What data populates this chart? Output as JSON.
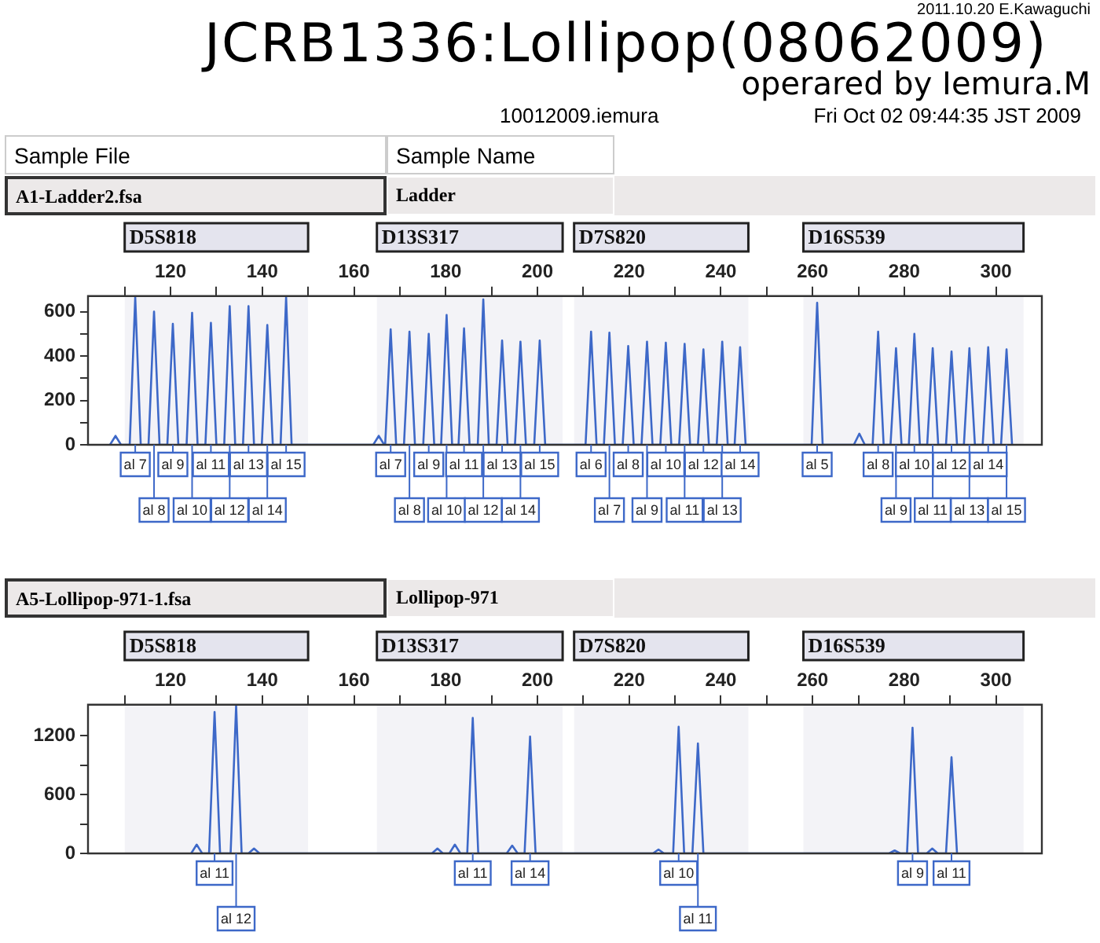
{
  "chart_data": [
    {
      "type": "line",
      "title": "JCRB1336:Lollipop(08062009)",
      "subtitle": "operared by Iemura.M",
      "annotations": [
        "2011.10.20 E.Kawaguchi",
        "10012009.iemura",
        "Fri Oct 02 09:44:35 JST 2009",
        "Sample File",
        "Sample Name",
        "A1-Ladder2.fsa",
        "Ladder",
        {
          "text": "al 7",
          "x": 112.3,
          "y": 0
        },
        {
          "text": "al 8",
          "x": 116.4,
          "y": 0
        },
        {
          "text": "al 9",
          "x": 120.5,
          "y": 0
        },
        {
          "text": "al 10",
          "x": 124.7,
          "y": 0
        },
        {
          "text": "al 11",
          "x": 128.8,
          "y": 0
        },
        {
          "text": "al 12",
          "x": 132.9,
          "y": 0
        },
        {
          "text": "al 13",
          "x": 137.0,
          "y": 0
        },
        {
          "text": "al 14",
          "x": 141.1,
          "y": 0
        },
        {
          "text": "al 15",
          "x": 145.2,
          "y": 0
        },
        {
          "text": "al 7",
          "x": 168.0,
          "y": 0
        },
        {
          "text": "al 8",
          "x": 172.1,
          "y": 0
        },
        {
          "text": "al 9",
          "x": 176.3,
          "y": 0
        },
        {
          "text": "al 10",
          "x": 180.2,
          "y": 0
        },
        {
          "text": "al 11",
          "x": 184.0,
          "y": 0
        },
        {
          "text": "al 12",
          "x": 188.2,
          "y": 0
        },
        {
          "text": "al 13",
          "x": 192.3,
          "y": 0
        },
        {
          "text": "al 14",
          "x": 196.3,
          "y": 0
        },
        {
          "text": "al 15",
          "x": 200.5,
          "y": 0
        },
        {
          "text": "al 6",
          "x": 211.7,
          "y": 0
        },
        {
          "text": "al 7",
          "x": 215.7,
          "y": 0
        },
        {
          "text": "al 8",
          "x": 219.8,
          "y": 0
        },
        {
          "text": "al 9",
          "x": 223.9,
          "y": 0
        },
        {
          "text": "al 10",
          "x": 228.0,
          "y": 0
        },
        {
          "text": "al 11",
          "x": 232.1,
          "y": 0
        },
        {
          "text": "al 12",
          "x": 236.2,
          "y": 0
        },
        {
          "text": "al 13",
          "x": 240.3,
          "y": 0
        },
        {
          "text": "al 14",
          "x": 244.2,
          "y": 0
        },
        {
          "text": "al 5",
          "x": 261.0,
          "y": 0
        },
        {
          "text": "al 8",
          "x": 274.3,
          "y": 0
        },
        {
          "text": "al 9",
          "x": 278.2,
          "y": 0
        },
        {
          "text": "al 10",
          "x": 282.2,
          "y": 0
        },
        {
          "text": "al 11",
          "x": 286.2,
          "y": 0
        },
        {
          "text": "al 12",
          "x": 290.3,
          "y": 0
        },
        {
          "text": "al 13",
          "x": 294.2,
          "y": 0
        },
        {
          "text": "al 14",
          "x": 298.3,
          "y": 0
        },
        {
          "text": "al 15",
          "x": 302.3,
          "y": 0
        }
      ],
      "bands": [
        {
          "axis": "x",
          "from": 110,
          "to": 150,
          "label": "D5S818",
          "color": "#e4e4ee"
        },
        {
          "axis": "x",
          "from": 165,
          "to": 205.5,
          "label": "D13S317",
          "color": "#e4e4ee"
        },
        {
          "axis": "x",
          "from": 208,
          "to": 246,
          "label": "D7S820",
          "color": "#e4e4ee"
        },
        {
          "axis": "x",
          "from": 258,
          "to": 306,
          "label": "D16S539",
          "color": "#e4e4ee"
        }
      ],
      "x": [
        106.8,
        108.0,
        109.2,
        111.1,
        112.3,
        113.5,
        115.2,
        116.4,
        117.6,
        119.3,
        120.5,
        121.7,
        123.5,
        124.7,
        125.9,
        127.6,
        128.8,
        130.0,
        131.7,
        132.9,
        134.1,
        135.8,
        137.0,
        138.2,
        139.9,
        141.1,
        142.3,
        144.0,
        145.2,
        146.4,
        164.2,
        165.4,
        166.6,
        166.8,
        168.0,
        169.2,
        170.9,
        172.1,
        173.3,
        175.1,
        176.3,
        177.5,
        179.0,
        180.2,
        181.4,
        182.8,
        184.0,
        185.2,
        187.0,
        188.2,
        189.4,
        191.1,
        192.3,
        193.5,
        195.1,
        196.3,
        197.5,
        199.3,
        200.5,
        201.7,
        210.5,
        211.7,
        212.9,
        214.5,
        215.7,
        216.9,
        218.6,
        219.8,
        221.0,
        222.7,
        223.9,
        225.1,
        226.8,
        228.0,
        229.2,
        230.9,
        232.1,
        233.3,
        235.0,
        236.2,
        237.4,
        239.1,
        240.3,
        241.5,
        243.0,
        244.2,
        245.4,
        259.8,
        261.0,
        262.2,
        269.0,
        270.2,
        271.4,
        273.1,
        274.3,
        275.5,
        277.0,
        278.2,
        279.4,
        281.0,
        282.2,
        283.4,
        285.0,
        286.2,
        287.4,
        289.1,
        290.3,
        291.5,
        293.0,
        294.2,
        295.4,
        297.1,
        298.3,
        299.5,
        301.1,
        302.3,
        303.5
      ],
      "series": [
        {
          "color": "#3d68c8",
          "values": [
            0,
            40,
            0,
            0,
            665,
            0,
            0,
            600,
            0,
            0,
            545,
            0,
            0,
            595,
            0,
            0,
            550,
            0,
            0,
            625,
            0,
            0,
            625,
            0,
            0,
            540,
            0,
            0,
            665,
            0,
            0,
            40,
            0,
            0,
            520,
            0,
            0,
            510,
            0,
            0,
            500,
            0,
            0,
            585,
            0,
            0,
            525,
            0,
            0,
            655,
            0,
            0,
            470,
            0,
            0,
            465,
            0,
            0,
            470,
            0,
            0,
            510,
            0,
            0,
            505,
            0,
            0,
            445,
            0,
            0,
            465,
            0,
            0,
            460,
            0,
            0,
            455,
            0,
            0,
            430,
            0,
            0,
            465,
            0,
            0,
            440,
            0,
            0,
            640,
            0,
            0,
            50,
            0,
            0,
            510,
            0,
            0,
            435,
            0,
            0,
            500,
            0,
            0,
            435,
            0,
            0,
            420,
            0,
            0,
            435,
            0,
            0,
            440,
            0,
            0,
            430,
            0
          ]
        }
      ],
      "xlim": [
        102,
        310
      ],
      "xticks": [
        {
          "value": 110,
          "label": null
        },
        120,
        {
          "value": 130,
          "label": null
        },
        140,
        {
          "value": 150,
          "label": null
        },
        160,
        {
          "value": 170,
          "label": null
        },
        180,
        {
          "value": 190,
          "label": null
        },
        200,
        {
          "value": 210,
          "label": null
        },
        220,
        {
          "value": 230,
          "label": null
        },
        240,
        {
          "value": 250,
          "label": null
        },
        260,
        {
          "value": 270,
          "label": null
        },
        280,
        {
          "value": 290,
          "label": null
        },
        300
      ],
      "ylim": [
        0,
        670
      ],
      "yticks": [
        0,
        {
          "value": 100,
          "label": null
        },
        200,
        {
          "value": 300,
          "label": null
        },
        400,
        {
          "value": 500,
          "label": null
        },
        600
      ],
      "grid": false,
      "legend": false
    },
    {
      "type": "line",
      "annotations": [
        "A5-Lollipop-971-1.fsa",
        "Lollipop-971",
        {
          "text": "al 11",
          "x": 129.6,
          "y": 0
        },
        {
          "text": "al 12",
          "x": 134.3,
          "y": 0
        },
        {
          "text": "al 11",
          "x": 185.9,
          "y": 0
        },
        {
          "text": "al 14",
          "x": 198.4,
          "y": 0
        },
        {
          "text": "al 10",
          "x": 230.8,
          "y": 0
        },
        {
          "text": "al 11",
          "x": 235.0,
          "y": 0
        },
        {
          "text": "al 9",
          "x": 281.8,
          "y": 0
        },
        {
          "text": "al 11",
          "x": 290.3,
          "y": 0
        }
      ],
      "bands": [
        {
          "axis": "x",
          "from": 110,
          "to": 150,
          "label": "D5S818",
          "color": "#e4e4ee"
        },
        {
          "axis": "x",
          "from": 165,
          "to": 205.5,
          "label": "D13S317",
          "color": "#e4e4ee"
        },
        {
          "axis": "x",
          "from": 208,
          "to": 246,
          "label": "D7S820",
          "color": "#e4e4ee"
        },
        {
          "axis": "x",
          "from": 258,
          "to": 306,
          "label": "D16S539",
          "color": "#e4e4ee"
        }
      ],
      "x": [
        124.5,
        125.7,
        126.9,
        128.4,
        129.6,
        130.8,
        133.1,
        134.3,
        135.5,
        137.0,
        138.2,
        139.4,
        177.0,
        178.2,
        179.4,
        180.8,
        182.0,
        183.2,
        184.7,
        185.9,
        187.1,
        193.3,
        194.5,
        195.7,
        197.2,
        198.4,
        199.6,
        225.2,
        226.4,
        227.6,
        229.6,
        230.8,
        232.0,
        233.8,
        235.0,
        236.2,
        276.7,
        277.9,
        279.1,
        280.6,
        281.8,
        283.0,
        284.9,
        286.1,
        287.3,
        289.1,
        290.3,
        291.5
      ],
      "series": [
        {
          "color": "#3d68c8",
          "values": [
            0,
            90,
            0,
            0,
            1440,
            0,
            0,
            1510,
            0,
            0,
            50,
            0,
            0,
            50,
            0,
            0,
            90,
            0,
            0,
            1380,
            0,
            0,
            80,
            0,
            0,
            1190,
            0,
            0,
            40,
            0,
            0,
            1290,
            0,
            0,
            1120,
            0,
            0,
            30,
            0,
            0,
            1280,
            0,
            0,
            50,
            0,
            0,
            980,
            0
          ]
        }
      ],
      "xlim": [
        102,
        310
      ],
      "xticks": [
        {
          "value": 110,
          "label": null
        },
        120,
        {
          "value": 130,
          "label": null
        },
        140,
        {
          "value": 150,
          "label": null
        },
        160,
        {
          "value": 170,
          "label": null
        },
        180,
        {
          "value": 190,
          "label": null
        },
        200,
        {
          "value": 210,
          "label": null
        },
        220,
        {
          "value": 230,
          "label": null
        },
        240,
        {
          "value": 250,
          "label": null
        },
        260,
        {
          "value": 270,
          "label": null
        },
        280,
        {
          "value": 290,
          "label": null
        },
        300
      ],
      "ylim": [
        0,
        1515
      ],
      "yticks": [
        0,
        {
          "value": 300,
          "label": null
        },
        600,
        {
          "value": 900,
          "label": null
        },
        1200
      ],
      "grid": false,
      "legend": false
    }
  ]
}
